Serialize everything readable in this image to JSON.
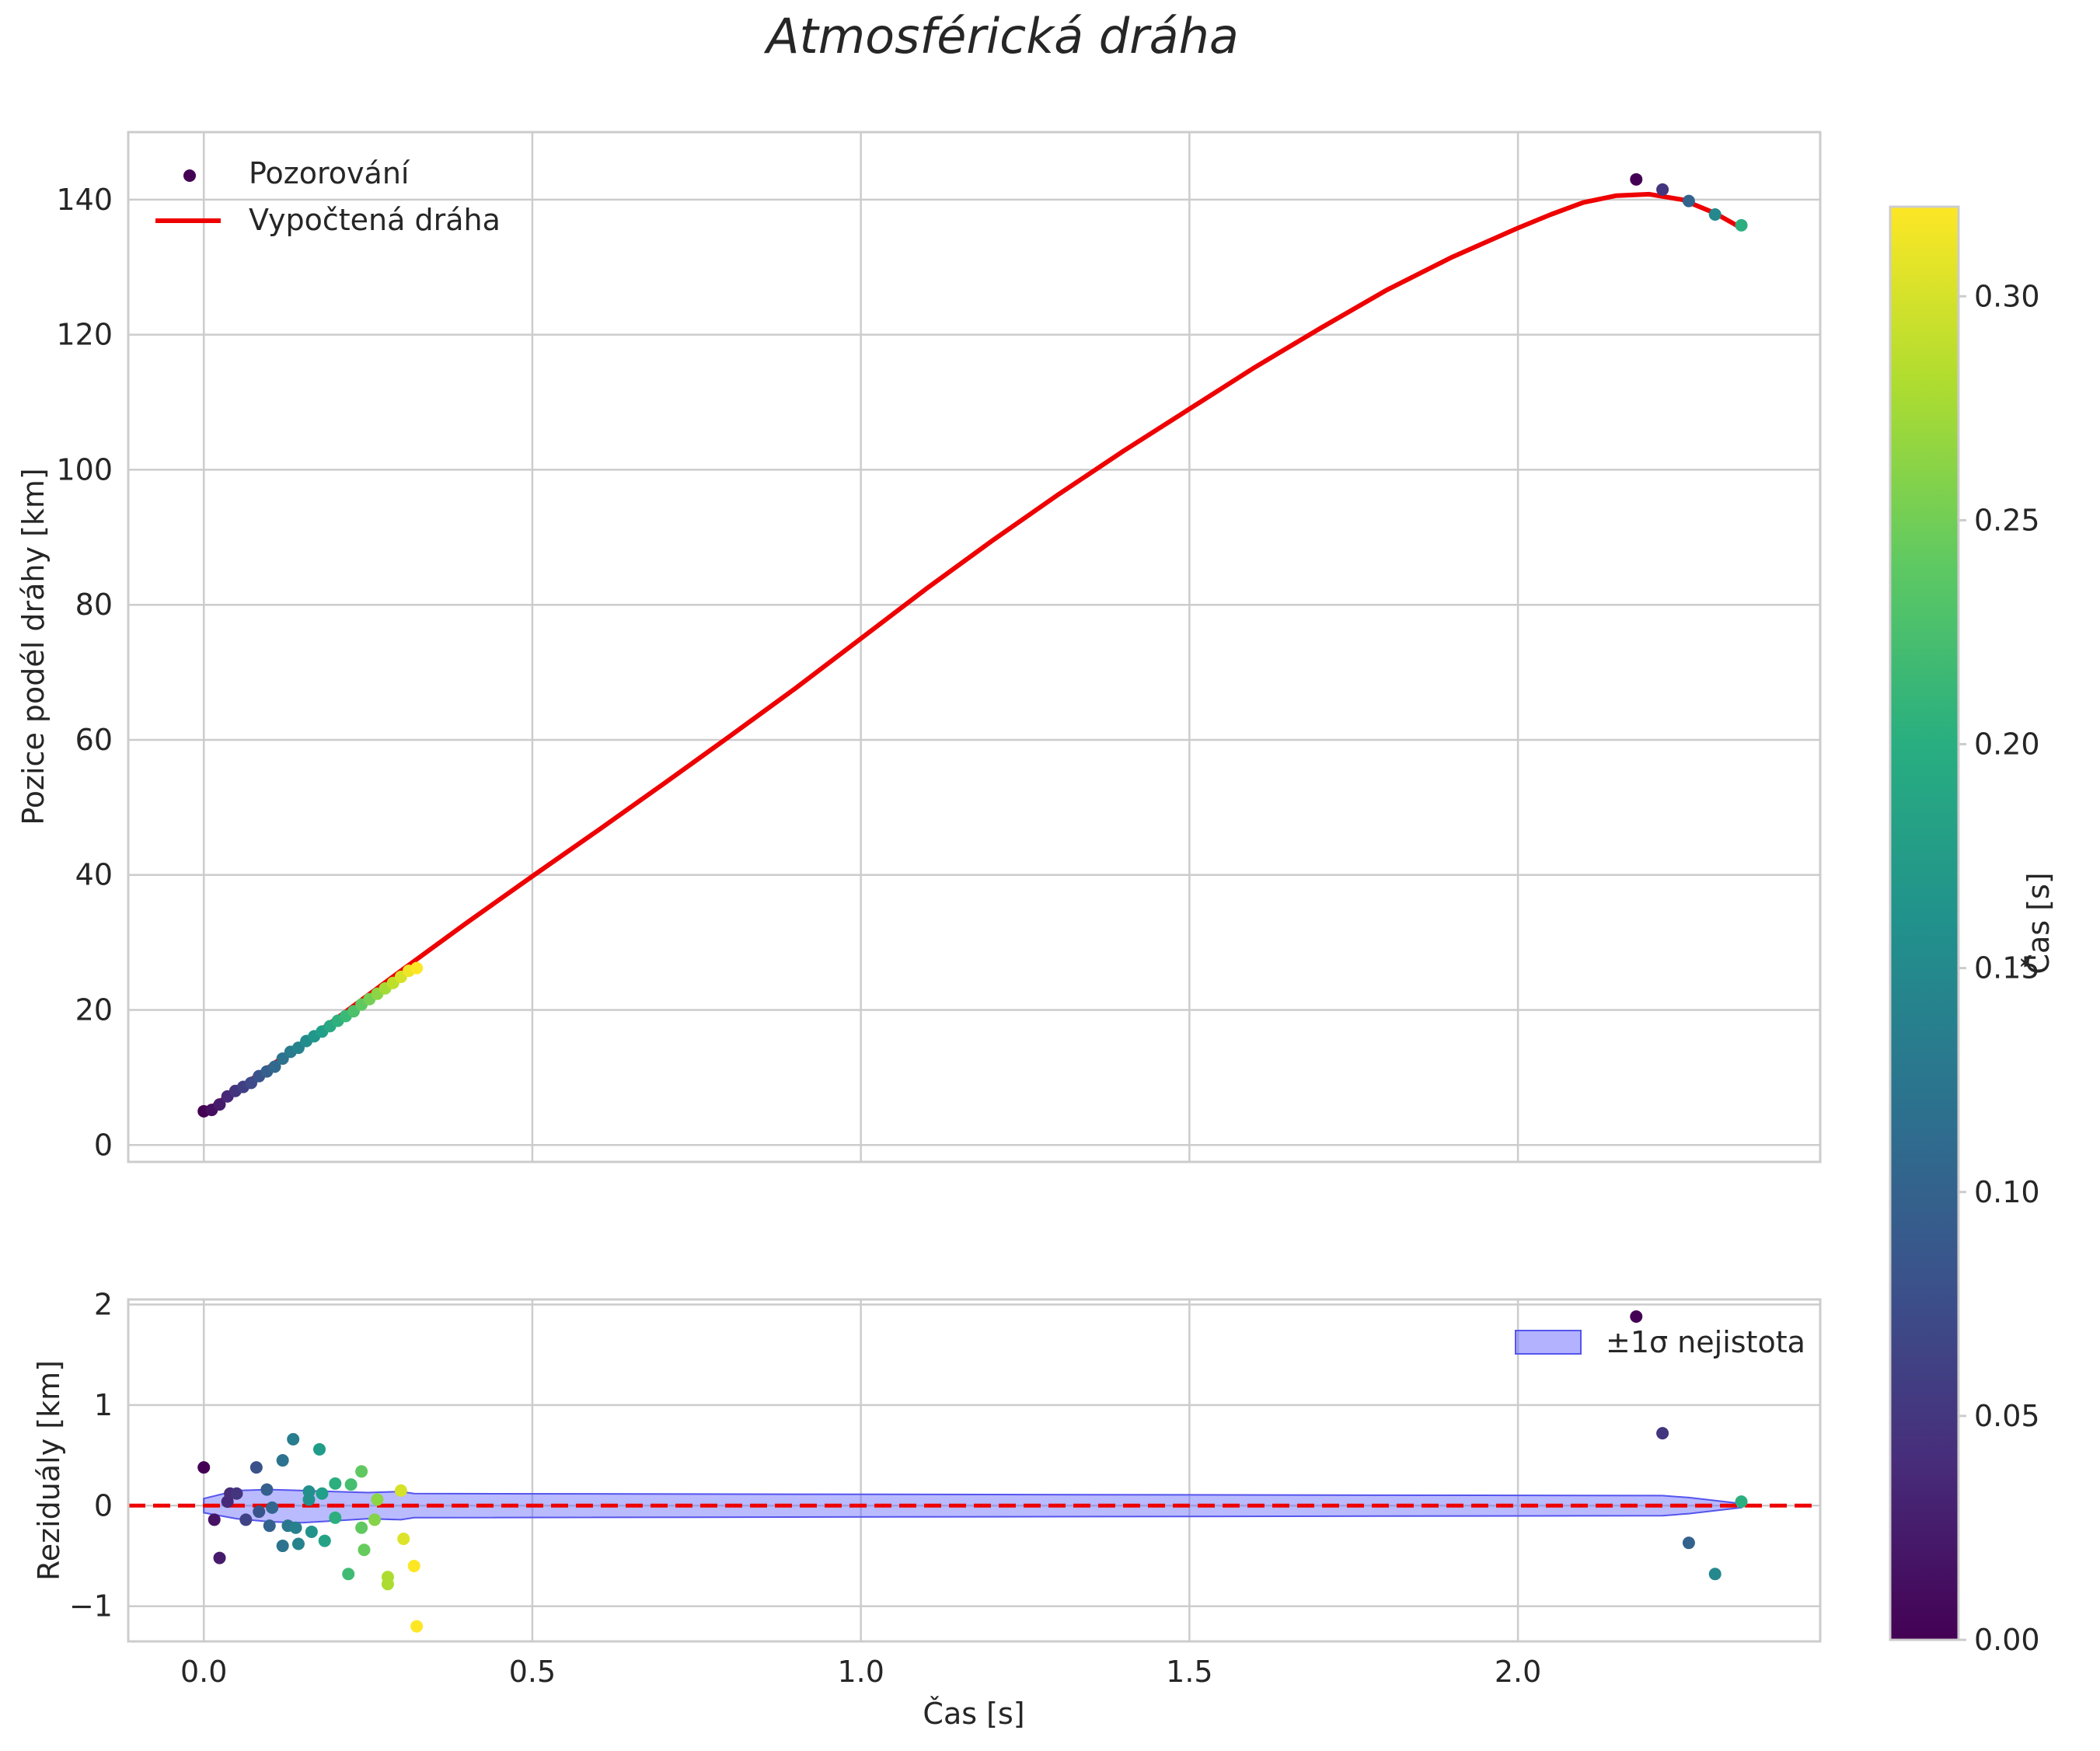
{
  "chart_data": [
    {
      "type": "scatter",
      "title": "Atmosférická dráha",
      "xlabel": "",
      "ylabel": "Pozice podél dráhy [km]",
      "xlim": [
        -0.115,
        2.46
      ],
      "ylim": [
        -2.5,
        150
      ],
      "xticks": [
        0.0,
        0.5,
        1.0,
        1.5,
        2.0
      ],
      "yticks": [
        0,
        20,
        40,
        60,
        80,
        100,
        120,
        140
      ],
      "ytick_labels": [
        "0",
        "20",
        "40",
        "60",
        "80",
        "100",
        "120",
        "140"
      ],
      "grid": true,
      "legend_position": "top-left",
      "series": [
        {
          "name": "Pozorování",
          "kind": "scatter",
          "color_by": "time",
          "x": [
            0.0,
            0.012,
            0.024,
            0.036,
            0.048,
            0.06,
            0.072,
            0.084,
            0.096,
            0.108,
            0.12,
            0.132,
            0.144,
            0.156,
            0.168,
            0.18,
            0.192,
            0.204,
            0.216,
            0.228,
            0.24,
            0.252,
            0.264,
            0.276,
            0.288,
            0.3,
            0.312,
            0.324,
            2.18,
            2.22,
            2.26,
            2.3,
            2.34
          ],
          "y": [
            5.0,
            5.2,
            6.0,
            7.2,
            8.0,
            8.6,
            9.2,
            10.2,
            10.9,
            11.6,
            12.8,
            13.8,
            14.4,
            15.4,
            16.1,
            16.8,
            17.6,
            18.4,
            19.1,
            19.8,
            20.8,
            21.6,
            22.4,
            23.2,
            24.0,
            24.9,
            25.8,
            26.2,
            143.0,
            141.5,
            139.8,
            137.8,
            136.2
          ],
          "c": [
            0.0,
            0.012,
            0.024,
            0.036,
            0.048,
            0.06,
            0.072,
            0.084,
            0.096,
            0.108,
            0.12,
            0.132,
            0.144,
            0.156,
            0.168,
            0.18,
            0.192,
            0.204,
            0.216,
            0.228,
            0.24,
            0.252,
            0.264,
            0.276,
            0.288,
            0.3,
            0.312,
            0.324,
            0.0,
            0.05,
            0.1,
            0.15,
            0.2
          ]
        },
        {
          "name": "Vypočtená dráha",
          "kind": "line",
          "color": "#ee0000",
          "x": [
            0.0,
            0.05,
            0.1,
            0.2,
            0.3,
            0.4,
            0.5,
            0.6,
            0.7,
            0.8,
            0.9,
            1.0,
            1.1,
            1.2,
            1.3,
            1.4,
            1.5,
            1.6,
            1.7,
            1.8,
            1.9,
            2.0,
            2.05,
            2.1,
            2.15,
            2.2,
            2.25,
            2.3,
            2.34
          ],
          "y": [
            4.8,
            8.2,
            11.6,
            18.6,
            25.8,
            32.9,
            39.8,
            46.6,
            53.5,
            60.5,
            67.6,
            75.0,
            82.4,
            89.5,
            96.3,
            102.8,
            109.0,
            115.2,
            121.0,
            126.6,
            131.5,
            135.8,
            137.8,
            139.6,
            140.6,
            140.8,
            140.0,
            138.0,
            135.8
          ]
        }
      ]
    },
    {
      "type": "scatter",
      "title": "",
      "xlabel": "Čas [s]",
      "ylabel": "Reziduály [km]",
      "xlim": [
        -0.115,
        2.46
      ],
      "ylim": [
        -1.35,
        2.05
      ],
      "xticks": [
        0.0,
        0.5,
        1.0,
        1.5,
        2.0,
        2.5
      ],
      "xtick_labels": [
        "0.0",
        "0.5",
        "1.0",
        "1.5",
        "2.0"
      ],
      "yticks": [
        -1,
        0,
        1,
        2
      ],
      "ytick_labels": [
        "−1",
        "0",
        "1",
        "2"
      ],
      "grid": true,
      "legend_position": "top-right",
      "reference_line": {
        "y": 0,
        "color": "#ee0000",
        "style": "dashed"
      },
      "band": {
        "name": "±1σ nejistota",
        "color": "#6666ff",
        "x": [
          0.0,
          0.05,
          0.1,
          0.15,
          0.2,
          0.25,
          0.3,
          0.32,
          2.22,
          2.26,
          2.3,
          2.34
        ],
        "upper": [
          0.07,
          0.15,
          0.16,
          0.15,
          0.14,
          0.13,
          0.14,
          0.12,
          0.1,
          0.08,
          0.05,
          0.02
        ],
        "lower": [
          -0.07,
          -0.13,
          -0.16,
          -0.17,
          -0.15,
          -0.13,
          -0.14,
          -0.12,
          -0.1,
          -0.08,
          -0.05,
          -0.02
        ]
      },
      "series": [
        {
          "name": "Reziduály",
          "kind": "scatter",
          "color_by": "time",
          "x": [
            0.0,
            0.016,
            0.024,
            0.036,
            0.04,
            0.05,
            0.064,
            0.08,
            0.084,
            0.096,
            0.1,
            0.104,
            0.12,
            0.12,
            0.128,
            0.136,
            0.14,
            0.144,
            0.16,
            0.16,
            0.164,
            0.176,
            0.18,
            0.184,
            0.2,
            0.2,
            0.22,
            0.224,
            0.24,
            0.24,
            0.244,
            0.26,
            0.264,
            0.28,
            0.28,
            0.3,
            0.304,
            0.32,
            0.324,
            2.18,
            2.22,
            2.26,
            2.3,
            2.34
          ],
          "y": [
            0.38,
            -0.14,
            -0.52,
            0.04,
            0.12,
            0.12,
            -0.14,
            0.38,
            -0.06,
            0.16,
            -0.2,
            -0.02,
            0.45,
            -0.4,
            -0.2,
            0.66,
            -0.22,
            -0.38,
            0.14,
            0.06,
            -0.26,
            0.56,
            0.12,
            -0.35,
            0.22,
            -0.12,
            -0.68,
            0.21,
            0.34,
            -0.22,
            -0.44,
            -0.14,
            0.06,
            -0.71,
            -0.78,
            0.15,
            -0.33,
            -0.6,
            -1.2,
            1.88,
            0.72,
            -0.37,
            -0.68,
            0.04
          ],
          "c": [
            0.0,
            0.016,
            0.024,
            0.036,
            0.04,
            0.05,
            0.064,
            0.08,
            0.084,
            0.096,
            0.1,
            0.104,
            0.12,
            0.12,
            0.128,
            0.136,
            0.14,
            0.144,
            0.16,
            0.16,
            0.164,
            0.176,
            0.18,
            0.184,
            0.2,
            0.2,
            0.22,
            0.224,
            0.24,
            0.24,
            0.244,
            0.26,
            0.264,
            0.28,
            0.28,
            0.3,
            0.304,
            0.32,
            0.324,
            0.0,
            0.05,
            0.1,
            0.15,
            0.2
          ]
        }
      ]
    }
  ],
  "colorbar": {
    "label": "Čas [s]",
    "colormap": "viridis",
    "min": 0.0,
    "max": 0.32,
    "ticks": [
      0.0,
      0.05,
      0.1,
      0.15,
      0.2,
      0.25,
      0.3
    ],
    "tick_labels": [
      "0.00",
      "0.05",
      "0.10",
      "0.15",
      "0.20",
      "0.25",
      "0.30"
    ]
  }
}
